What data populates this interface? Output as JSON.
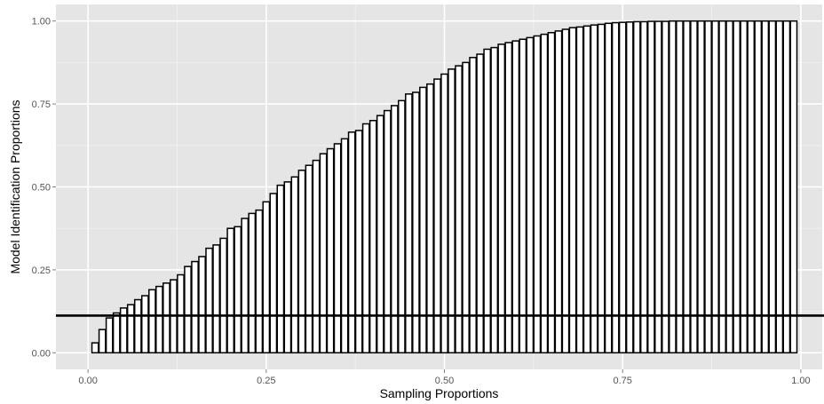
{
  "chart_data": {
    "type": "bar",
    "xlabel": "Sampling Proportions",
    "ylabel": "Model Identification Proportions",
    "xlim": [
      -0.045,
      1.03
    ],
    "ylim": [
      -0.05,
      1.05
    ],
    "x_ticks": [
      0.0,
      0.25,
      0.5,
      0.75,
      1.0
    ],
    "x_tick_labels": [
      "0.00",
      "0.25",
      "0.50",
      "0.75",
      "1.00"
    ],
    "y_ticks": [
      0.0,
      0.25,
      0.5,
      0.75,
      1.0
    ],
    "y_tick_labels": [
      "0.00",
      "0.25",
      "0.50",
      "0.75",
      "1.00"
    ],
    "reference_line_y": 0.112,
    "grid": true,
    "x": [
      0.01,
      0.02,
      0.03,
      0.04,
      0.05,
      0.06,
      0.07,
      0.08,
      0.09,
      0.1,
      0.11,
      0.12,
      0.13,
      0.14,
      0.15,
      0.16,
      0.17,
      0.18,
      0.19,
      0.2,
      0.21,
      0.22,
      0.23,
      0.24,
      0.25,
      0.26,
      0.27,
      0.28,
      0.29,
      0.3,
      0.31,
      0.32,
      0.33,
      0.34,
      0.35,
      0.36,
      0.37,
      0.38,
      0.39,
      0.4,
      0.41,
      0.42,
      0.43,
      0.44,
      0.45,
      0.46,
      0.47,
      0.48,
      0.49,
      0.5,
      0.51,
      0.52,
      0.53,
      0.54,
      0.55,
      0.56,
      0.57,
      0.58,
      0.59,
      0.6,
      0.61,
      0.62,
      0.63,
      0.64,
      0.65,
      0.66,
      0.67,
      0.68,
      0.69,
      0.7,
      0.71,
      0.72,
      0.73,
      0.74,
      0.75,
      0.76,
      0.77,
      0.78,
      0.79,
      0.8,
      0.81,
      0.82,
      0.83,
      0.84,
      0.85,
      0.86,
      0.87,
      0.88,
      0.89,
      0.9,
      0.91,
      0.92,
      0.93,
      0.94,
      0.95,
      0.96,
      0.97,
      0.98,
      0.99
    ],
    "values": [
      0.03,
      0.07,
      0.105,
      0.12,
      0.135,
      0.145,
      0.16,
      0.172,
      0.19,
      0.2,
      0.21,
      0.22,
      0.235,
      0.26,
      0.275,
      0.29,
      0.315,
      0.325,
      0.345,
      0.375,
      0.38,
      0.405,
      0.42,
      0.43,
      0.455,
      0.48,
      0.505,
      0.515,
      0.53,
      0.55,
      0.565,
      0.58,
      0.6,
      0.615,
      0.63,
      0.645,
      0.665,
      0.67,
      0.69,
      0.7,
      0.715,
      0.73,
      0.745,
      0.76,
      0.78,
      0.785,
      0.8,
      0.81,
      0.825,
      0.84,
      0.855,
      0.865,
      0.875,
      0.89,
      0.9,
      0.915,
      0.92,
      0.93,
      0.935,
      0.94,
      0.945,
      0.95,
      0.955,
      0.96,
      0.965,
      0.97,
      0.975,
      0.98,
      0.982,
      0.985,
      0.988,
      0.99,
      0.993,
      0.995,
      0.996,
      0.997,
      0.998,
      0.998,
      0.999,
      0.999,
      0.999,
      1.0,
      1.0,
      1.0,
      1.0,
      1.0,
      1.0,
      1.0,
      1.0,
      1.0,
      1.0,
      1.0,
      1.0,
      1.0,
      1.0,
      1.0,
      1.0,
      1.0,
      1.0
    ],
    "colors": {
      "panel_background": "#e5e5e5",
      "grid_major": "#ffffff",
      "grid_minor": "#f2f2f2",
      "bar_fill": "#ffffff",
      "bar_stroke": "#000000",
      "reference_line": "#000000",
      "tick_label": "#555555"
    }
  }
}
